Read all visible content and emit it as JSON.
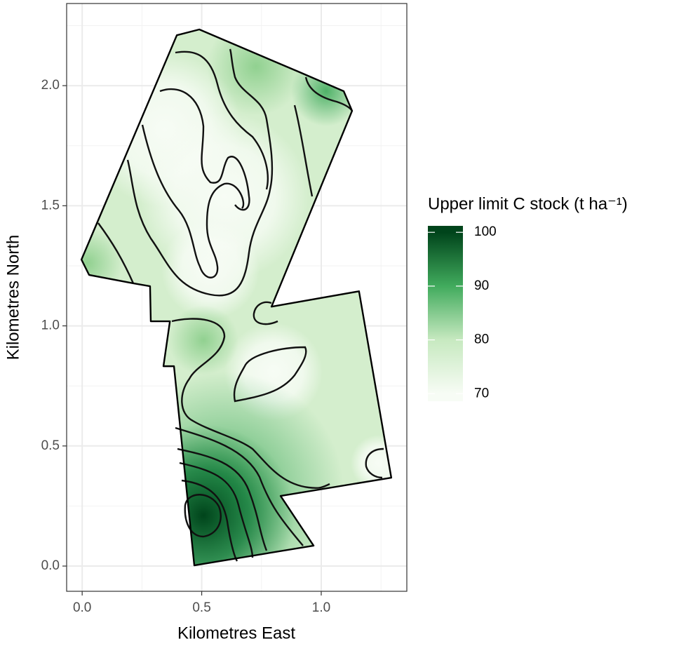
{
  "chart_data": {
    "type": "contour-map",
    "xlabel": "Kilometres East",
    "ylabel": "Kilometres North",
    "xlim": [
      -0.065,
      1.358
    ],
    "ylim": [
      -0.105,
      2.342
    ],
    "xticks": [
      {
        "value": 0,
        "label": "0.0"
      },
      0.5,
      {
        "value": 1,
        "label": "1.0"
      }
    ],
    "yticks": [
      {
        "value": 0,
        "label": "0.0"
      },
      0.5,
      {
        "value": 1,
        "label": "1.0"
      },
      1.5,
      {
        "value": 2,
        "label": "2.0"
      }
    ],
    "xminor": [
      0.25,
      0.75,
      1.25
    ],
    "yminor": [
      0.25,
      0.75,
      1.25,
      1.75,
      2.25
    ],
    "grid": true,
    "boundary": {
      "x": [
        0.396,
        0.49,
        0.912,
        1.094,
        1.129,
        0.792,
        1.158,
        1.293,
        0.83,
        0.968,
        0.469,
        0.384,
        0.34,
        0.367,
        0.287,
        0.284,
        0.214,
        0.029,
        -0.003
      ],
      "y": [
        2.21,
        2.234,
        2.055,
        1.977,
        1.895,
        1.08,
        1.144,
        0.368,
        0.292,
        0.085,
        0.003,
        0.832,
        0.832,
        1.019,
        1.019,
        1.165,
        1.177,
        1.212,
        1.276
      ]
    },
    "colorbar": {
      "title": "Upper limit C stock (t ha⁻¹)",
      "lim": [
        68.6,
        101.2
      ],
      "ticks": [
        70,
        80,
        90,
        100
      ],
      "colors": [
        "#f7fcf5",
        "#c7e9c0",
        "#41ab5d",
        "#00441b"
      ]
    }
  }
}
